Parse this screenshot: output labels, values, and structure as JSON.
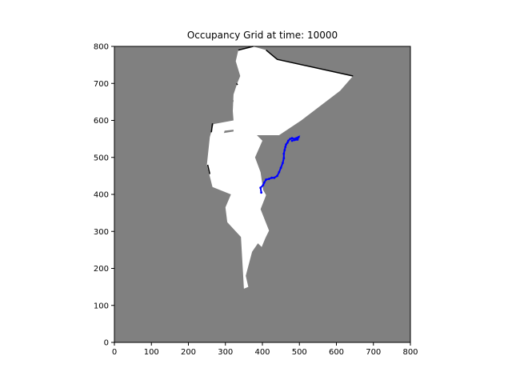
{
  "chart_data": {
    "type": "heatmap",
    "title": "Occupancy Grid at time: 10000",
    "xlabel": "",
    "ylabel": "",
    "xlim": [
      0,
      800
    ],
    "ylim": [
      0,
      800
    ],
    "x_ticks": [
      0,
      100,
      200,
      300,
      400,
      500,
      600,
      700,
      800
    ],
    "y_ticks": [
      0,
      100,
      200,
      300,
      400,
      500,
      600,
      700,
      800
    ],
    "grid": false,
    "colors": {
      "unknown": "#808080",
      "free": "#ffffff",
      "occupied": "#000000",
      "trajectory": "#0000ff"
    },
    "free_region": [
      [
        335,
        790
      ],
      [
        375,
        800
      ],
      [
        410,
        790
      ],
      [
        440,
        765
      ],
      [
        645,
        720
      ],
      [
        610,
        680
      ],
      [
        505,
        600
      ],
      [
        445,
        560
      ],
      [
        385,
        560
      ],
      [
        400,
        545
      ],
      [
        380,
        500
      ],
      [
        395,
        460
      ],
      [
        402,
        412
      ],
      [
        410,
        398
      ],
      [
        395,
        360
      ],
      [
        418,
        302
      ],
      [
        408,
        282
      ],
      [
        398,
        258
      ],
      [
        388,
        268
      ],
      [
        372,
        245
      ],
      [
        355,
        180
      ],
      [
        362,
        150
      ],
      [
        350,
        145
      ],
      [
        342,
        285
      ],
      [
        305,
        325
      ],
      [
        300,
        365
      ],
      [
        315,
        400
      ],
      [
        265,
        420
      ],
      [
        250,
        480
      ],
      [
        258,
        555
      ],
      [
        268,
        590
      ],
      [
        322,
        600
      ],
      [
        320,
        625
      ],
      [
        322,
        670
      ],
      [
        332,
        700
      ],
      [
        340,
        720
      ],
      [
        328,
        760
      ]
    ],
    "gray_wedges": [
      [
        [
          320,
          615
        ],
        [
          272,
          610
        ],
        [
          276,
          600
        ],
        [
          320,
          612
        ]
      ],
      [
        [
          322,
          575
        ],
        [
          298,
          572
        ],
        [
          296,
          566
        ],
        [
          322,
          570
        ]
      ],
      [
        [
          322,
          655
        ],
        [
          290,
          672
        ],
        [
          292,
          668
        ],
        [
          322,
          650
        ]
      ],
      [
        [
          555,
          548
        ],
        [
          575,
          540
        ],
        [
          578,
          535
        ],
        [
          560,
          542
        ]
      ],
      [
        [
          592,
          560
        ],
        [
          560,
          548
        ],
        [
          562,
          545
        ],
        [
          595,
          555
        ]
      ]
    ],
    "occupied_edges": [
      [
        [
          335,
          790
        ],
        [
          375,
          800
        ]
      ],
      [
        [
          410,
          790
        ],
        [
          440,
          765
        ],
        [
          645,
          720
        ]
      ],
      [
        [
          265,
          592
        ],
        [
          262,
          568
        ]
      ],
      [
        [
          252,
          480
        ],
        [
          258,
          455
        ]
      ],
      [
        [
          330,
          700
        ],
        [
          333,
          696
        ]
      ]
    ],
    "trajectory": [
      [
        397,
        405
      ],
      [
        395,
        418
      ],
      [
        402,
        425
      ],
      [
        405,
        432
      ],
      [
        410,
        440
      ],
      [
        418,
        442
      ],
      [
        425,
        445
      ],
      [
        432,
        445
      ],
      [
        440,
        450
      ],
      [
        445,
        460
      ],
      [
        450,
        472
      ],
      [
        455,
        485
      ],
      [
        458,
        498
      ],
      [
        458,
        510
      ],
      [
        460,
        520
      ],
      [
        462,
        528
      ],
      [
        464,
        535
      ],
      [
        468,
        540
      ],
      [
        470,
        545
      ],
      [
        475,
        550
      ],
      [
        480,
        552
      ],
      [
        486,
        550
      ],
      [
        492,
        552
      ],
      [
        498,
        555
      ],
      [
        495,
        548
      ],
      [
        487,
        547
      ],
      [
        480,
        545
      ]
    ]
  }
}
